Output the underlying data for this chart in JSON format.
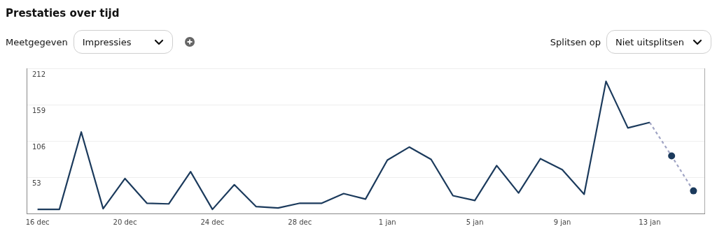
{
  "chart_data": {
    "type": "line",
    "title": "Prestaties over tijd",
    "annotations": [
      "Meetgegeven",
      "Impressies",
      "Splitsen op",
      "Niet uitsplitsen"
    ],
    "categories": [
      "16 dec",
      null,
      null,
      null,
      "20 dec",
      null,
      null,
      null,
      "24 dec",
      null,
      null,
      null,
      "28 dec",
      null,
      null,
      null,
      "1 jan",
      null,
      null,
      null,
      "5 jan",
      null,
      null,
      null,
      "9 jan",
      null,
      null,
      null,
      "13 jan",
      null,
      null
    ],
    "series": [
      {
        "color": "#1b3a5c",
        "line_style": "solid",
        "marker": "none",
        "values": [
          6,
          6,
          119,
          7,
          51,
          15,
          14,
          61,
          6,
          42,
          10,
          8,
          15,
          15,
          29,
          21,
          78,
          97,
          79,
          26,
          19,
          70,
          30,
          80,
          64,
          28,
          193,
          125,
          133,
          null,
          null
        ]
      },
      {
        "color": "#a0a4c4",
        "line_style": "dashed",
        "marker": "circle",
        "colors": [
          null,
          null,
          null,
          null,
          null,
          null,
          null,
          null,
          null,
          null,
          null,
          null,
          null,
          null,
          null,
          null,
          null,
          null,
          null,
          null,
          null,
          null,
          null,
          null,
          null,
          null,
          null,
          null,
          null,
          "#1b3a5c",
          "#1b3a5c"
        ],
        "values": [
          null,
          null,
          null,
          null,
          null,
          null,
          null,
          null,
          null,
          null,
          null,
          null,
          null,
          null,
          null,
          null,
          null,
          null,
          null,
          null,
          null,
          null,
          null,
          null,
          null,
          null,
          null,
          null,
          133,
          84,
          33
        ]
      }
    ],
    "ylim": [
      0,
      212
    ],
    "yticks": [
      {
        "value": 0,
        "label": null
      },
      53,
      106,
      159,
      212
    ],
    "grid": "y",
    "legend": false
  }
}
